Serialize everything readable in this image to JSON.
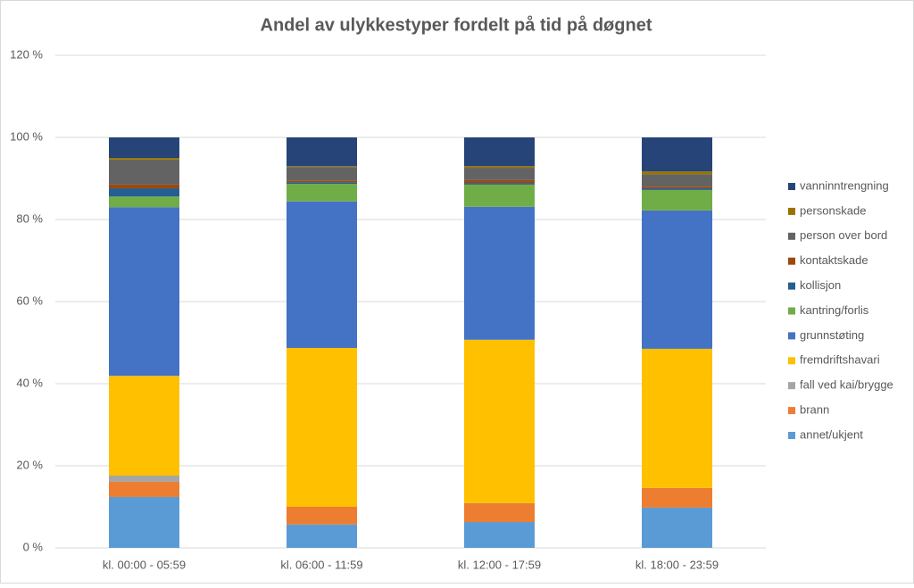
{
  "chart_data": {
    "type": "stacked_bar",
    "title": "Andel av ulykkestyper fordelt på tid på døgnet",
    "categories": [
      "kl. 00:00 - 05:59",
      "kl. 06:00 - 11:59",
      "kl. 12:00 - 17:59",
      "kl. 18:00 - 23:59"
    ],
    "series": [
      {
        "name": "annet/ukjent",
        "color": "#5b9bd5",
        "values": [
          12.4,
          5.7,
          6.3,
          9.8
        ]
      },
      {
        "name": "brann",
        "color": "#ed7d31",
        "values": [
          3.7,
          4.3,
          4.6,
          4.8
        ]
      },
      {
        "name": "fall ved kai/brygge",
        "color": "#a5a5a5",
        "values": [
          1.5,
          0,
          0,
          0
        ]
      },
      {
        "name": "fremdriftshavari",
        "color": "#ffc000",
        "values": [
          24.3,
          38.7,
          39.8,
          33.9
        ]
      },
      {
        "name": "grunnstøting",
        "color": "#4472c4",
        "values": [
          41.1,
          35.7,
          32.4,
          33.7
        ]
      },
      {
        "name": "kantring/forlis",
        "color": "#70ad47",
        "values": [
          2.6,
          4.3,
          5.4,
          5.0
        ]
      },
      {
        "name": "kollisjon",
        "color": "#255e91",
        "values": [
          2.0,
          0.4,
          0.4,
          0.4
        ]
      },
      {
        "name": "kontaktskade",
        "color": "#9e480e",
        "values": [
          0.9,
          0.4,
          0.7,
          0.4
        ]
      },
      {
        "name": "person over bord",
        "color": "#636363",
        "values": [
          6.1,
          3.3,
          3.0,
          3.0
        ]
      },
      {
        "name": "personskade",
        "color": "#997300",
        "values": [
          0.4,
          0.2,
          0.4,
          0.7
        ]
      },
      {
        "name": "vanninntrengning",
        "color": "#264478",
        "values": [
          5.0,
          7.0,
          7.0,
          8.3
        ]
      }
    ],
    "ylim": [
      0,
      120
    ],
    "yticks": [
      {
        "value": 0,
        "label": "0 %"
      },
      {
        "value": 20,
        "label": "20 %"
      },
      {
        "value": 40,
        "label": "40 %"
      },
      {
        "value": 60,
        "label": "60 %"
      },
      {
        "value": 80,
        "label": "80 %"
      },
      {
        "value": 100,
        "label": "100 %"
      },
      {
        "value": 120,
        "label": "120 %"
      }
    ],
    "grid": true,
    "legend": "right"
  }
}
